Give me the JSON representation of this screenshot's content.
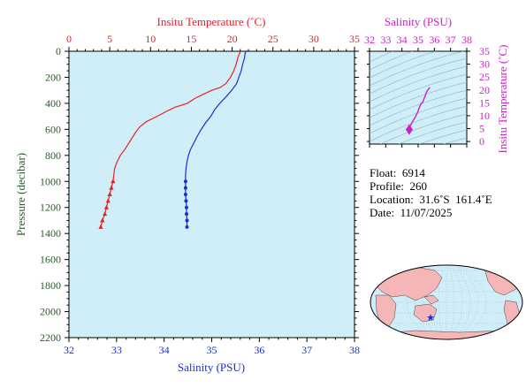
{
  "colors": {
    "temperature": "#e8202a",
    "salinity": "#1a2fd0",
    "ts_panel": "#cc20cc",
    "pressure_axis": "#2a5a2a",
    "plot_bg": "#d0eef8",
    "land": "#f4b6b6",
    "ocean": "#d0eef8"
  },
  "float_info": {
    "float": "Float:  6914",
    "profile": "Profile:  260",
    "location": "Location:  31.6˚S  161.4˚E",
    "date": "Date:  11/07/2025"
  },
  "chart_data": [
    {
      "type": "line",
      "title": "",
      "top_xlabel": "Insitu Temperature (˚C)",
      "bottom_xlabel": "Salinity (PSU)",
      "ylabel": "Pressure (decibar)",
      "temp_range": [
        0,
        35
      ],
      "sal_range": [
        32,
        38
      ],
      "pressure_range": [
        0,
        2200
      ],
      "temp_ticks": [
        "0",
        "5",
        "10",
        "15",
        "20",
        "25",
        "30",
        "35"
      ],
      "sal_ticks": [
        "32",
        "33",
        "34",
        "35",
        "36",
        "37",
        "38"
      ],
      "pressure_ticks": [
        "0",
        "200",
        "400",
        "600",
        "800",
        "1000",
        "1200",
        "1400",
        "1600",
        "1800",
        "2000",
        "2200"
      ],
      "series": [
        {
          "key": "temperature",
          "pressure": [
            0,
            20,
            50,
            100,
            150,
            200,
            250,
            280,
            300,
            330,
            360,
            400,
            430,
            460,
            500,
            540,
            580,
            620,
            660,
            700,
            750,
            800,
            850,
            900,
            950,
            1000,
            1050,
            1100,
            1150,
            1200,
            1250,
            1300,
            1350
          ],
          "values": [
            21.0,
            20.9,
            20.7,
            20.5,
            20.2,
            19.8,
            19.2,
            18.5,
            17.5,
            16.5,
            15.5,
            14.5,
            13.0,
            12.0,
            10.8,
            9.5,
            8.7,
            8.2,
            7.8,
            7.4,
            6.9,
            6.3,
            5.9,
            5.6,
            5.5,
            5.4,
            5.2,
            5.0,
            4.8,
            4.6,
            4.4,
            4.1,
            3.9
          ]
        },
        {
          "key": "salinity",
          "pressure": [
            0,
            20,
            50,
            100,
            150,
            200,
            250,
            300,
            350,
            400,
            450,
            500,
            550,
            600,
            650,
            700,
            750,
            800,
            850,
            900,
            950,
            1000,
            1050,
            1100,
            1150,
            1200,
            1250,
            1300,
            1350
          ],
          "values": [
            35.72,
            35.7,
            35.69,
            35.65,
            35.62,
            35.57,
            35.52,
            35.42,
            35.3,
            35.17,
            35.06,
            34.98,
            34.87,
            34.78,
            34.7,
            34.63,
            34.56,
            34.51,
            34.48,
            34.46,
            34.45,
            34.45,
            34.45,
            34.45,
            34.46,
            34.47,
            34.47,
            34.48,
            34.48
          ]
        }
      ]
    },
    {
      "type": "scatter",
      "title": "",
      "xlabel": "Salinity (PSU)",
      "ylabel": "Insitu Temperature (˚C)",
      "xlim": [
        32,
        38
      ],
      "ylim": [
        -1,
        35
      ],
      "x_ticks": [
        "32",
        "33",
        "34",
        "35",
        "36",
        "37",
        "38"
      ],
      "y_ticks": [
        "0",
        "5",
        "10",
        "15",
        "20",
        "25",
        "30",
        "35"
      ],
      "x": [
        35.72,
        35.69,
        35.62,
        35.52,
        35.42,
        35.3,
        35.17,
        35.06,
        34.98,
        34.87,
        34.78,
        34.7,
        34.63,
        34.56,
        34.51,
        34.48,
        34.46,
        34.45
      ],
      "y": [
        21.0,
        20.7,
        20.2,
        19.2,
        17.5,
        15.5,
        14.5,
        13.0,
        11.5,
        10.0,
        9.0,
        8.2,
        7.4,
        6.6,
        6.0,
        5.6,
        5.2,
        4.6
      ]
    }
  ]
}
